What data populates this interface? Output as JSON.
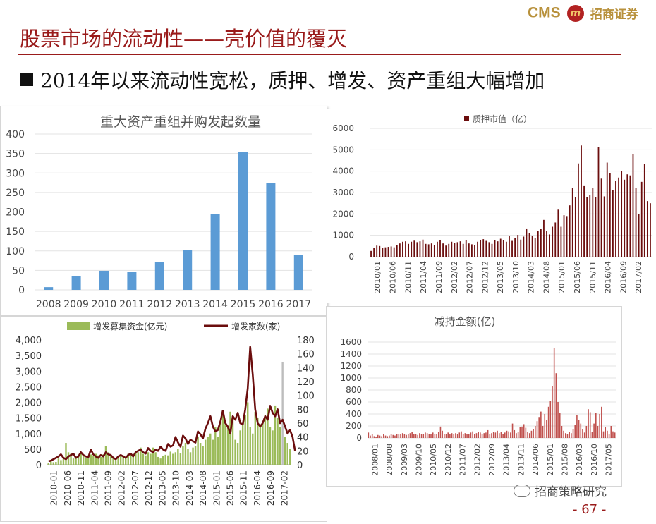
{
  "header": {
    "title": "股票市场的流动性——壳价值的覆灭",
    "subtitle": "2014年以来流动性宽松，质押、增发、资产重组大幅增加",
    "logo_cms": "CMS",
    "logo_cn": "招商证券"
  },
  "footer": {
    "wechat_label": "招商策略研究",
    "page_number": "- 67 -"
  },
  "colors": {
    "brand_red": "#9a1b1b",
    "bar_blue": "#5b9bd5",
    "dark_red": "#6b0d0d",
    "light_red": "#c0504d",
    "bar_green": "#9bbb59"
  },
  "chart_data": [
    {
      "id": "restructuring",
      "type": "bar",
      "title": "重大资产重组并购发起数量",
      "categories": [
        "2008",
        "2009",
        "2010",
        "2011",
        "2012",
        "2013",
        "2014",
        "2015",
        "2016",
        "2017"
      ],
      "values": [
        7,
        35,
        49,
        47,
        72,
        103,
        194,
        353,
        275,
        89
      ],
      "ylim": [
        0,
        400
      ],
      "yticks": [
        0,
        50,
        100,
        150,
        200,
        250,
        300,
        350,
        400
      ],
      "grid": true
    },
    {
      "id": "pledge",
      "type": "bar",
      "legend": "质押市值（亿）",
      "legend_position": "top",
      "ylim": [
        0,
        6000
      ],
      "yticks": [
        0,
        1000,
        2000,
        3000,
        4000,
        5000,
        6000
      ],
      "grid": true,
      "x_tick_labels": [
        "2010/01",
        "2010/06",
        "2010/11",
        "2011/04",
        "2011/09",
        "2012/02",
        "2012/07",
        "2012/12",
        "2013/05",
        "2013/10",
        "2014/03",
        "2014/08",
        "2015/01",
        "2015/06",
        "2015/11",
        "2016/04",
        "2016/09",
        "2017/02"
      ],
      "values": [
        270,
        400,
        520,
        500,
        420,
        440,
        460,
        480,
        440,
        560,
        620,
        700,
        720,
        600,
        700,
        750,
        680,
        720,
        800,
        600,
        580,
        620,
        540,
        700,
        760,
        620,
        520,
        600,
        700,
        640,
        680,
        720,
        600,
        760,
        620,
        580,
        540,
        700,
        760,
        820,
        740,
        680,
        600,
        780,
        720,
        840,
        760,
        700,
        960,
        740,
        880,
        1020,
        800,
        940,
        1320,
        1100,
        980,
        860,
        1200,
        1300,
        1720,
        1200,
        1040,
        1400,
        1600,
        2200,
        1400,
        1940,
        1900,
        2400,
        3220,
        2800,
        4360,
        5200,
        3300,
        2800,
        2900,
        3200,
        2800,
        5140,
        3650,
        2820,
        4400,
        3900,
        3100,
        3550,
        3700,
        4000,
        3600,
        3850,
        3800,
        4800,
        3200,
        2000,
        3500,
        4350,
        2600,
        2500
      ]
    },
    {
      "id": "placement",
      "type": "bar+line",
      "legend_position": "top",
      "series": [
        {
          "name": "增发募集资金(亿元)",
          "type": "bar",
          "axis": "left",
          "values": [
            50,
            120,
            80,
            90,
            200,
            150,
            250,
            700,
            400,
            350,
            200,
            250,
            300,
            350,
            300,
            220,
            250,
            330,
            280,
            350,
            300,
            250,
            330,
            600,
            400,
            300,
            200,
            150,
            250,
            280,
            300,
            230,
            350,
            380,
            300,
            450,
            400,
            550,
            350,
            300,
            400,
            350,
            550,
            400,
            250,
            200,
            280,
            320,
            300,
            420,
            350,
            400,
            500,
            380,
            600,
            700,
            500,
            400,
            550,
            600,
            900,
            700,
            600,
            800,
            900,
            1000,
            800,
            1200,
            900,
            1400,
            1600,
            1300,
            1200,
            1700,
            1500,
            800,
            700,
            1100,
            1300,
            1600,
            2000,
            1200,
            1000,
            1700,
            1500,
            1300,
            1400,
            1600,
            1800,
            1200,
            1100,
            1900,
            1500,
            1200,
            3300,
            900,
            700,
            500
          ]
        },
        {
          "name": "增发家数(家)",
          "type": "line",
          "axis": "right",
          "values": [
            5,
            6,
            8,
            10,
            12,
            15,
            10,
            8,
            12,
            14,
            16,
            10,
            12,
            18,
            14,
            12,
            11,
            22,
            15,
            12,
            10,
            14,
            12,
            18,
            15,
            14,
            10,
            8,
            12,
            14,
            12,
            10,
            14,
            16,
            12,
            18,
            20,
            22,
            18,
            16,
            24,
            20,
            18,
            22,
            20,
            26,
            22,
            20,
            30,
            26,
            28,
            40,
            32,
            26,
            42,
            38,
            30,
            36,
            34,
            32,
            48,
            44,
            38,
            52,
            60,
            70,
            55,
            48,
            50,
            62,
            78,
            60,
            55,
            45,
            70,
            65,
            75,
            60,
            58,
            80,
            110,
            170,
            130,
            80,
            60,
            55,
            60,
            70,
            65,
            85,
            75,
            70,
            80,
            60,
            65,
            55,
            45,
            50,
            40,
            20
          ]
        }
      ],
      "ylim_left": [
        0,
        4000
      ],
      "yticks_left": [
        "0",
        "500",
        "1,000",
        "1,500",
        "2,000",
        "2,500",
        "3,000",
        "3,500",
        "4,000"
      ],
      "ylim_right": [
        0,
        180
      ],
      "yticks_right": [
        0,
        20,
        40,
        60,
        80,
        100,
        120,
        140,
        160,
        180
      ],
      "x_tick_labels": [
        "2010-01",
        "2010-06",
        "2010-11",
        "2011-04",
        "2011-09",
        "2012-02",
        "2012-07",
        "2012-12",
        "2013-05",
        "2013-10",
        "2014-03",
        "2014-08",
        "2015-01",
        "2015-06",
        "2015-11",
        "2016-04",
        "2016-09",
        "2017-02"
      ]
    },
    {
      "id": "reduction",
      "type": "bar",
      "title": "减持金额(亿)",
      "ylim": [
        0,
        1600
      ],
      "yticks": [
        0,
        200,
        400,
        600,
        800,
        1000,
        1200,
        1400,
        1600
      ],
      "grid": true,
      "x_tick_labels": [
        "2008/01",
        "2008/08",
        "2009/03",
        "2009/10",
        "2010/05",
        "2010/12",
        "2011/07",
        "2012/02",
        "2012/09",
        "2013/04",
        "2013/11",
        "2014/06",
        "2015/01",
        "2015/08",
        "2016/03",
        "2016/10",
        "2017/05"
      ],
      "values": [
        90,
        40,
        60,
        30,
        20,
        50,
        40,
        30,
        60,
        40,
        30,
        40,
        60,
        50,
        40,
        60,
        70,
        60,
        80,
        60,
        50,
        70,
        80,
        100,
        70,
        60,
        50,
        80,
        60,
        70,
        90,
        80,
        60,
        70,
        90,
        60,
        70,
        100,
        190,
        120,
        60,
        70,
        90,
        70,
        80,
        60,
        80,
        70,
        90,
        110,
        60,
        80,
        70,
        60,
        90,
        110,
        70,
        80,
        100,
        90,
        70,
        80,
        90,
        130,
        60,
        80,
        100,
        90,
        120,
        80,
        100,
        70,
        90,
        120,
        110,
        90,
        240,
        130,
        80,
        100,
        180,
        190,
        230,
        170,
        100,
        80,
        120,
        150,
        200,
        280,
        350,
        440,
        200,
        400,
        300,
        520,
        620,
        860,
        1500,
        1080,
        600,
        420,
        200,
        120,
        80,
        60,
        100,
        80,
        150,
        220,
        380,
        300,
        240,
        150,
        90,
        200,
        480,
        430,
        100,
        240,
        420,
        200,
        400,
        520,
        110,
        180,
        120,
        60,
        200,
        110,
        90
      ]
    }
  ]
}
